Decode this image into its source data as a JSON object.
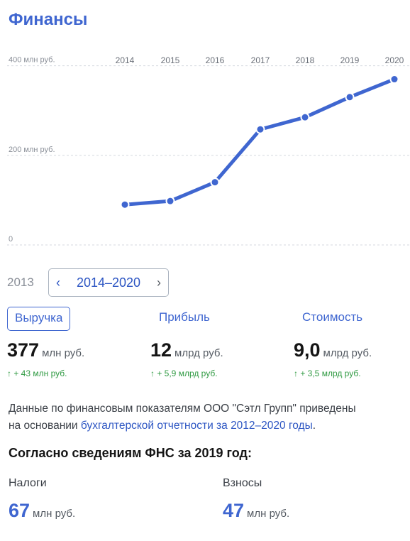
{
  "title": "Финансы",
  "chart_data": {
    "type": "line",
    "x": [
      "2014",
      "2015",
      "2016",
      "2017",
      "2018",
      "2019",
      "2020"
    ],
    "y_tick_labels": [
      "400 млн руб.",
      "200 млн руб.",
      "0"
    ],
    "y_ticks": [
      400,
      200,
      0
    ],
    "ylim": [
      0,
      420
    ],
    "series": [
      {
        "values": [
          90,
          98,
          140,
          258,
          285,
          330,
          370
        ]
      }
    ],
    "grid": true,
    "color": "#3f66d0"
  },
  "period": {
    "previous_year": "2013",
    "range": "2014–2020",
    "prev_arrow": "‹",
    "next_arrow": "›"
  },
  "metrics": [
    {
      "label": "Выручка",
      "value": "377",
      "unit": "млн руб.",
      "delta": "↑ + 43 млн руб."
    },
    {
      "label": "Прибыль",
      "value": "12",
      "unit": "млрд руб.",
      "delta": "↑ + 5,9 млрд руб."
    },
    {
      "label": "Стоимость",
      "value": "9,0",
      "unit": "млрд руб.",
      "delta": "↑ + 3,5 млрд руб."
    }
  ],
  "note": {
    "line1": "Данные по финансовым показателям ООО \"Сэтл Групп\" приведены",
    "line2_prefix": "на основании ",
    "link": "бухгалтерской отчетности за 2012–2020 годы",
    "line2_suffix": "."
  },
  "fns": {
    "heading": "Согласно сведениям ФНС за 2019 год:",
    "taxes": {
      "label": "Налоги",
      "value": "67",
      "unit": "млн руб."
    },
    "contributions": {
      "label": "Взносы",
      "value": "47",
      "unit": "млн руб."
    }
  }
}
